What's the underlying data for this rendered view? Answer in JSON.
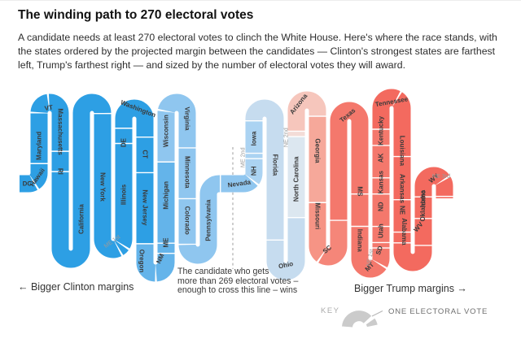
{
  "title": "The winding path to 270 electoral votes",
  "subtitle_lines": [
    "A candidate needs at least 270 electoral votes to clinch the White House. Here's where the race stands, with",
    "the states ordered by the projected margin between the candidates — Clinton's strongest states are farthest",
    "left, Trump's farthest right — and sized by the number of electoral votes they will award."
  ],
  "annotations": {
    "clinton_margins": "← Bigger Clinton margins",
    "trump_margins": "Bigger Trump margins →",
    "threshold_note_lines": [
      "The candidate who gets",
      "more than 269 electoral votes –",
      "enough to cross this line – wins"
    ],
    "key_label": "KEY",
    "key_value": "ONE ELECTORAL VOTE"
  },
  "colors": {
    "clinton_strong": "#2D9FE4",
    "clinton_medium": "#64B4EA",
    "clinton_light": "#8FC6EF",
    "clinton_lighter": "#ABD3F2",
    "clinton_pale": "#C6DCEF",
    "clinton_palest": "#DCE7F0",
    "trump_palest": "#F3DCD7",
    "trump_pale": "#F6C6BC",
    "trump_lighter": "#F6A89A",
    "trump_light": "#F69485",
    "trump_medium": "#F4786C",
    "trump_strong": "#F36A5F",
    "divider_line": "#9e9e9e",
    "key_gray": "#cbcbcb"
  },
  "chart_data": {
    "type": "other",
    "subtype": "serpentine electoral-vote path (one wedge = one electoral vote)",
    "total_electoral_votes": 538,
    "win_threshold": 270,
    "order": "states sorted by projected margin, Clinton strongest at left, Trump strongest at right",
    "states": [
      {
        "label": "DC",
        "ev": 3,
        "color": "#2D9FE4"
      },
      {
        "label": "Hawaii",
        "ev": 4,
        "color": "#2D9FE4"
      },
      {
        "label": "Maryland",
        "ev": 10,
        "color": "#2D9FE4"
      },
      {
        "label": "VT",
        "ev": 3,
        "color": "#2D9FE4"
      },
      {
        "label": "Massachusetts",
        "ev": 11,
        "color": "#2D9FE4"
      },
      {
        "label": "RI",
        "ev": 4,
        "color": "#2D9FE4"
      },
      {
        "label": "California",
        "ev": 55,
        "color": "#2D9FE4"
      },
      {
        "label": "New York",
        "ev": 29,
        "color": "#2D9FE4"
      },
      {
        "label": "ME 1st",
        "ev": 1,
        "color": "#2D9FE4",
        "outside": true
      },
      {
        "label": "Illinois",
        "ev": 20,
        "color": "#2D9FE4"
      },
      {
        "label": "DE",
        "ev": 3,
        "color": "#2D9FE4"
      },
      {
        "label": "Washington",
        "ev": 12,
        "color": "#2D9FE4"
      },
      {
        "label": "CT",
        "ev": 7,
        "color": "#2D9FE4"
      },
      {
        "label": "New Jersey",
        "ev": 14,
        "color": "#2D9FE4"
      },
      {
        "label": "Oregon",
        "ev": 7,
        "color": "#64B4EA"
      },
      {
        "label": "NM",
        "ev": 5,
        "color": "#64B4EA"
      },
      {
        "label": "ME",
        "ev": 2,
        "color": "#64B4EA"
      },
      {
        "label": "Michigan",
        "ev": 16,
        "color": "#64B4EA"
      },
      {
        "label": "Wisconsin",
        "ev": 10,
        "color": "#8FC6EF"
      },
      {
        "label": "Virginia",
        "ev": 13,
        "color": "#8FC6EF"
      },
      {
        "label": "Minnesota",
        "ev": 10,
        "color": "#8FC6EF"
      },
      {
        "label": "Colorado",
        "ev": 9,
        "color": "#8FC6EF"
      },
      {
        "label": "Pennsylvania",
        "ev": 20,
        "color": "#8FC6EF"
      },
      {
        "label": "Nevada",
        "ev": 6,
        "color": "#8FC6EF"
      },
      {
        "label": "NH",
        "ev": 4,
        "color": "#ABD3F2"
      },
      {
        "label": "ME 2nd",
        "ev": 1,
        "color": "#ABD3F2",
        "outside": true
      },
      {
        "label": "Iowa",
        "ev": 6,
        "color": "#ABD3F2"
      },
      {
        "label": "Florida",
        "ev": 29,
        "color": "#C6DCEF"
      },
      {
        "label": "Ohio",
        "ev": 18,
        "color": "#C6DCEF"
      },
      {
        "label": "North Carolina",
        "ev": 15,
        "color": "#DCE7F0"
      },
      {
        "label": "NE 2nd",
        "ev": 1,
        "color": "#F3DCD7",
        "outside": true
      },
      {
        "label": "Arizona",
        "ev": 11,
        "color": "#F6C6BC"
      },
      {
        "label": "Georgia",
        "ev": 16,
        "color": "#F6A89A"
      },
      {
        "label": "Missouri",
        "ev": 10,
        "color": "#F69485"
      },
      {
        "label": "SC",
        "ev": 9,
        "color": "#F58679"
      },
      {
        "label": "Texas",
        "ev": 38,
        "color": "#F4786C"
      },
      {
        "label": "MS",
        "ev": 6,
        "color": "#F4786C"
      },
      {
        "label": "Indiana",
        "ev": 11,
        "color": "#F4786C"
      },
      {
        "label": "MT",
        "ev": 3,
        "color": "#F4786C"
      },
      {
        "label": "NE 1st",
        "ev": 1,
        "color": "#F4786C",
        "outside": true
      },
      {
        "label": "SD",
        "ev": 3,
        "color": "#F4786C"
      },
      {
        "label": "Utah",
        "ev": 6,
        "color": "#F4786C"
      },
      {
        "label": "ND",
        "ev": 3,
        "color": "#F4786C"
      },
      {
        "label": "Kansas",
        "ev": 6,
        "color": "#F4786C"
      },
      {
        "label": "AK",
        "ev": 3,
        "color": "#F4786C"
      },
      {
        "label": "Kentucky",
        "ev": 8,
        "color": "#F36A5F"
      },
      {
        "label": "Tennessee",
        "ev": 11,
        "color": "#F36A5F"
      },
      {
        "label": "Louisiana",
        "ev": 8,
        "color": "#F36A5F"
      },
      {
        "label": "Arkansas",
        "ev": 6,
        "color": "#F36A5F"
      },
      {
        "label": "NE",
        "ev": 2,
        "color": "#F36A5F"
      },
      {
        "label": "Alabama",
        "ev": 9,
        "color": "#F36A5F"
      },
      {
        "label": "WV",
        "ev": 5,
        "color": "#F36A5F"
      },
      {
        "label": "Idaho",
        "ev": 4,
        "color": "#F36A5F"
      },
      {
        "label": "Oklahoma",
        "ev": 7,
        "color": "#F36A5F"
      },
      {
        "label": "WY",
        "ev": 3,
        "color": "#F36A5F"
      },
      {
        "label": "NE 3rd",
        "ev": 1,
        "color": "#F36A5F",
        "outside": true
      }
    ]
  }
}
